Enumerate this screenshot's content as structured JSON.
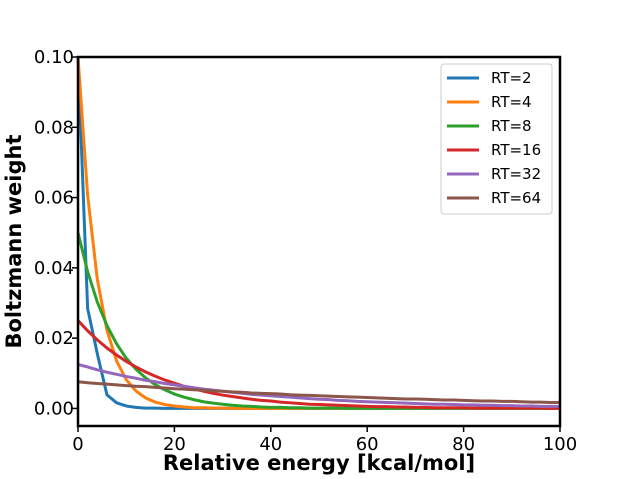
{
  "chart_data": {
    "type": "line",
    "title": "",
    "xlabel": "Relative energy [kcal/mol]",
    "ylabel": "Boltzmann weight",
    "xlim": [
      0,
      100
    ],
    "ylim": [
      -0.005,
      0.1
    ],
    "xticks": [
      0,
      20,
      40,
      60,
      80,
      100
    ],
    "xtick_labels": [
      "0",
      "20",
      "40",
      "60",
      "80",
      "100"
    ],
    "yticks": [
      0.0,
      0.02,
      0.04,
      0.06,
      0.08,
      0.1
    ],
    "ytick_labels": [
      "0.00",
      "0.02",
      "0.04",
      "0.06",
      "0.08",
      "0.10"
    ],
    "grid": false,
    "legend_position": "top-right",
    "x": [
      0,
      2,
      4,
      6,
      8,
      10,
      12,
      14,
      16,
      18,
      20,
      22,
      24,
      26,
      28,
      30,
      32,
      34,
      36,
      38,
      40,
      42,
      44,
      46,
      48,
      50,
      52,
      54,
      56,
      58,
      60,
      62,
      64,
      66,
      68,
      70,
      72,
      74,
      76,
      78,
      80,
      82,
      84,
      86,
      88,
      90,
      92,
      94,
      96,
      98,
      100
    ],
    "series": [
      {
        "name": "RT=2",
        "color": "#1f77b4",
        "values": [
          0.1,
          0.0284,
          0.0156,
          0.0039,
          0.0016,
          0.0007,
          0.0003,
          0.0001,
          0.0001,
          0.0,
          0.0,
          0.0,
          0.0,
          0.0,
          0.0,
          0.0,
          0.0,
          0.0,
          0.0,
          0.0,
          0.0,
          0.0,
          0.0,
          0.0,
          0.0,
          0.0,
          0.0,
          0.0,
          0.0,
          0.0,
          0.0,
          0.0,
          0.0,
          0.0,
          0.0,
          0.0,
          0.0,
          0.0,
          0.0,
          0.0,
          0.0,
          0.0,
          0.0,
          0.0,
          0.0,
          0.0,
          0.0,
          0.0,
          0.0,
          0.0,
          0.0
        ]
      },
      {
        "name": "RT=4",
        "color": "#ff7f0e",
        "values": [
          0.1,
          0.0606,
          0.0368,
          0.0223,
          0.0135,
          0.0082,
          0.005,
          0.003,
          0.0018,
          0.0011,
          0.0007,
          0.0004,
          0.0002,
          0.0002,
          0.0001,
          0.0001,
          0.0,
          0.0,
          0.0,
          0.0,
          0.0,
          0.0,
          0.0,
          0.0,
          0.0,
          0.0,
          0.0,
          0.0,
          0.0,
          0.0,
          0.0,
          0.0,
          0.0,
          0.0,
          0.0,
          0.0,
          0.0,
          0.0,
          0.0,
          0.0,
          0.0,
          0.0,
          0.0,
          0.0,
          0.0,
          0.0,
          0.0,
          0.0,
          0.0,
          0.0,
          0.0
        ]
      },
      {
        "name": "RT=8",
        "color": "#2ca02c",
        "values": [
          0.05,
          0.0389,
          0.0303,
          0.0236,
          0.0184,
          0.0143,
          0.0112,
          0.0087,
          0.0068,
          0.0053,
          0.0041,
          0.0032,
          0.0025,
          0.0019,
          0.0015,
          0.0012,
          0.0009,
          0.0007,
          0.0006,
          0.0004,
          0.0003,
          0.0003,
          0.0002,
          0.0002,
          0.0001,
          0.0001,
          0.0001,
          0.0001,
          0.0,
          0.0,
          0.0,
          0.0,
          0.0,
          0.0,
          0.0,
          0.0,
          0.0,
          0.0,
          0.0,
          0.0,
          0.0,
          0.0,
          0.0,
          0.0,
          0.0,
          0.0,
          0.0,
          0.0,
          0.0,
          0.0,
          0.0
        ]
      },
      {
        "name": "RT=16",
        "color": "#d62728",
        "values": [
          0.025,
          0.0221,
          0.0195,
          0.0172,
          0.0152,
          0.0134,
          0.0118,
          0.0104,
          0.0092,
          0.0081,
          0.0072,
          0.0063,
          0.0056,
          0.0049,
          0.0043,
          0.0038,
          0.0034,
          0.003,
          0.0026,
          0.0023,
          0.0021,
          0.0018,
          0.0016,
          0.0014,
          0.0012,
          0.0011,
          0.001,
          0.0009,
          0.0008,
          0.0007,
          0.0006,
          0.0005,
          0.0005,
          0.0004,
          0.0004,
          0.0003,
          0.0003,
          0.0002,
          0.0002,
          0.0002,
          0.0002,
          0.0001,
          0.0001,
          0.0001,
          0.0001,
          0.0001,
          0.0001,
          0.0001,
          0.0001,
          0.0,
          0.0
        ]
      },
      {
        "name": "RT=32",
        "color": "#9467bd",
        "values": [
          0.0125,
          0.0118,
          0.011,
          0.0103,
          0.0097,
          0.0091,
          0.0086,
          0.008,
          0.0076,
          0.0071,
          0.0067,
          0.0063,
          0.0059,
          0.0055,
          0.0052,
          0.0049,
          0.0046,
          0.0043,
          0.004,
          0.0038,
          0.0036,
          0.0034,
          0.0032,
          0.003,
          0.0028,
          0.0026,
          0.0025,
          0.0023,
          0.0022,
          0.002,
          0.0019,
          0.0018,
          0.0017,
          0.0016,
          0.0015,
          0.0014,
          0.0013,
          0.0012,
          0.0012,
          0.0011,
          0.001,
          0.001,
          0.0009,
          0.0009,
          0.0008,
          0.0008,
          0.0007,
          0.0007,
          0.0006,
          0.0006,
          0.0006
        ]
      },
      {
        "name": "RT=64",
        "color": "#8c564b",
        "values": [
          0.0076,
          0.0073,
          0.0071,
          0.0069,
          0.0067,
          0.0065,
          0.0063,
          0.0062,
          0.006,
          0.0058,
          0.0056,
          0.0055,
          0.0053,
          0.0052,
          0.005,
          0.0049,
          0.0047,
          0.0046,
          0.0044,
          0.0043,
          0.0042,
          0.0041,
          0.0039,
          0.0038,
          0.0037,
          0.0036,
          0.0035,
          0.0034,
          0.0033,
          0.0032,
          0.0031,
          0.003,
          0.0029,
          0.0028,
          0.0027,
          0.0027,
          0.0026,
          0.0025,
          0.0024,
          0.0024,
          0.0023,
          0.0022,
          0.0021,
          0.0021,
          0.002,
          0.002,
          0.0019,
          0.0018,
          0.0018,
          0.0017,
          0.0017
        ]
      }
    ]
  }
}
